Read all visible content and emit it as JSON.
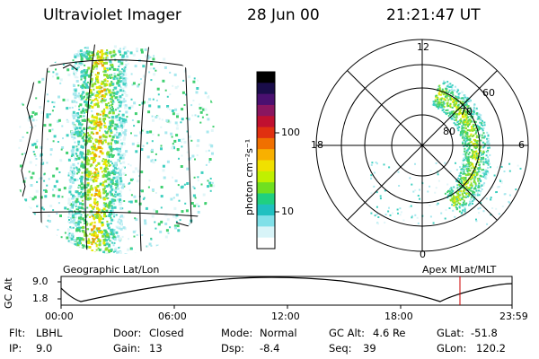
{
  "header": {
    "instrument": "Ultraviolet Imager",
    "date": "28 Jun 00",
    "time": "21:21:47 UT"
  },
  "colorbar": {
    "unit_label": "photon cm⁻²s⁻¹",
    "ticks": [
      "100",
      "10"
    ],
    "colors": [
      "#000000",
      "#1a0d4a",
      "#4a1070",
      "#8a1660",
      "#c01030",
      "#e03010",
      "#f07000",
      "#f8b000",
      "#f0e000",
      "#c0f000",
      "#70e020",
      "#20d080",
      "#20c0c0",
      "#80e0e8",
      "#d8f4f8",
      "#ffffff"
    ]
  },
  "left_panel": {
    "label": "Geographic Lat/Lon"
  },
  "right_panel": {
    "label": "Apex MLat/MLT",
    "mlt_labels": [
      "12",
      "18",
      "6",
      "0"
    ],
    "lat_labels": [
      "60",
      "70",
      "80"
    ]
  },
  "altitude_plot": {
    "ylabel": "GC Alt",
    "yticks": [
      "9.0",
      "1.8"
    ],
    "xticks": [
      "00:00",
      "06:00",
      "12:00",
      "18:00",
      "23:59"
    ],
    "marker_color": "#cc0000"
  },
  "footer": {
    "row1": [
      {
        "label": "Flt:",
        "value": "LBHL"
      },
      {
        "label": "Door:",
        "value": "Closed"
      },
      {
        "label": "Mode:",
        "value": "Normal"
      },
      {
        "label": "GC Alt:",
        "value": "4.6 Re"
      },
      {
        "label": "GLat:",
        "value": "-51.8"
      }
    ],
    "row2": [
      {
        "label": "IP:",
        "value": "9.0"
      },
      {
        "label": "Gain:",
        "value": "13"
      },
      {
        "label": "Dsp:",
        "value": "-8.4"
      },
      {
        "label": "Seq:",
        "value": "39"
      },
      {
        "label": "GLon:",
        "value": "120.2"
      }
    ]
  }
}
